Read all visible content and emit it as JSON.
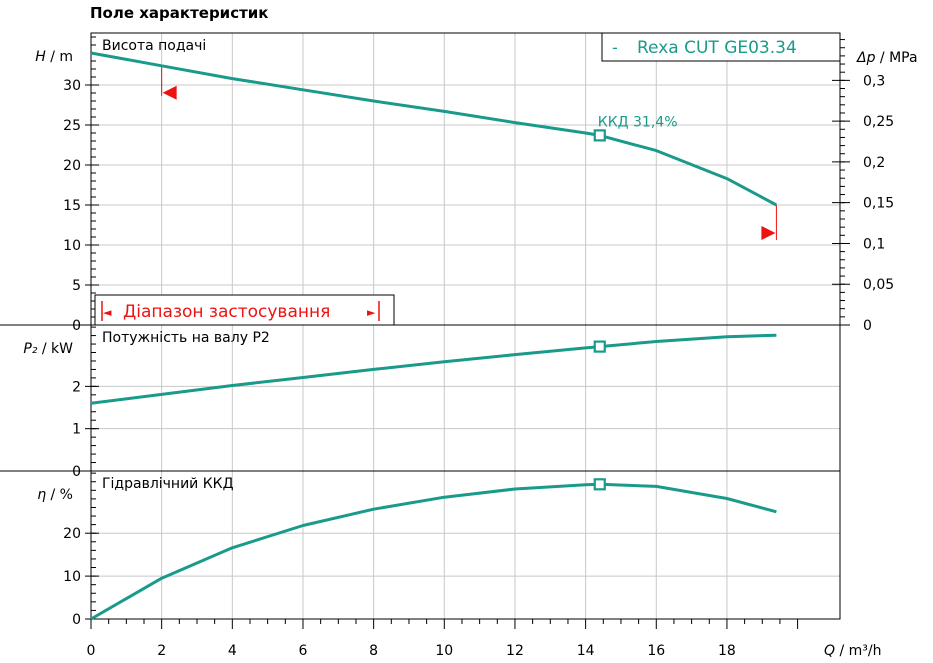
{
  "page_title": "Поле характеристик",
  "chart_data": {
    "type": "line",
    "x_axis": {
      "label_var": "Q",
      "label_unit": "/ m³/h",
      "range": [
        0,
        21.2
      ],
      "ticks": [
        0,
        2,
        4,
        6,
        8,
        10,
        12,
        14,
        16,
        18
      ],
      "tick_labels": [
        "0",
        "2",
        "4",
        "6",
        "8",
        "10",
        "12",
        "14",
        "16",
        "18"
      ]
    },
    "legend": {
      "marker": "-",
      "label": "Rexa CUT GE03.34",
      "placement": "top-right"
    },
    "colors": {
      "curve": "#1a9a8a",
      "range": "#ee1111",
      "grid": "#c8c8c8",
      "axis": "#000000"
    },
    "operating_point_q": 14.4,
    "panels": [
      {
        "name": "head",
        "panel_label": "Висота подачі",
        "y_label_var": "H",
        "y_label_unit": "/ m",
        "y_range": [
          0,
          36.5
        ],
        "y_ticks": [
          0,
          5,
          10,
          15,
          20,
          25,
          30
        ],
        "y_tick_labels": [
          "0",
          "5",
          "10",
          "15",
          "20",
          "25",
          "30"
        ],
        "right_axis": {
          "label_var": "Δp",
          "label_unit": "/ MPa",
          "ticks": [
            0,
            0.05,
            0.1,
            0.15,
            0.2,
            0.25,
            0.3
          ],
          "tick_labels": [
            "0",
            "0,05",
            "0,1",
            "0,15",
            "0,2",
            "0,25",
            "0,3"
          ]
        },
        "series": [
          {
            "x": [
              0,
              2,
              4,
              6,
              8,
              10,
              12,
              14,
              14.4,
              16,
              18,
              19.4
            ],
            "y": [
              34.0,
              32.4,
              30.8,
              29.4,
              28.0,
              26.7,
              25.3,
              24.0,
              23.7,
              21.8,
              18.3,
              15.0
            ]
          }
        ],
        "marker": {
          "x": 14.4,
          "y": 23.7
        },
        "annotation": "ККД  31,4%",
        "range_label": "Діапазон застосування",
        "range_arrow_left": "◄",
        "range_arrow_right": "►",
        "range_limits": {
          "q_min": 2.0,
          "h_at_min": 32.4,
          "q_max": 19.4,
          "h_at_max": 15.0
        }
      },
      {
        "name": "power",
        "panel_label": "Потужність на валу P2",
        "y_label_var": "P₂",
        "y_label_unit": "/ kW",
        "y_range": [
          0,
          3.45
        ],
        "y_ticks": [
          0,
          1,
          2
        ],
        "y_tick_labels": [
          "0",
          "1",
          "2"
        ],
        "series": [
          {
            "x": [
              0,
              2,
              4,
              6,
              8,
              10,
              12,
              14,
              14.4,
              16,
              18,
              19.4
            ],
            "y": [
              1.6,
              1.81,
              2.02,
              2.21,
              2.4,
              2.58,
              2.75,
              2.91,
              2.94,
              3.06,
              3.17,
              3.21
            ]
          }
        ],
        "marker": {
          "x": 14.4,
          "y": 2.94
        }
      },
      {
        "name": "efficiency",
        "panel_label": "Гідравлічний ККД",
        "y_label_var": "η",
        "y_label_unit": "/ %",
        "y_range": [
          0,
          34.5
        ],
        "y_ticks": [
          0,
          10,
          20
        ],
        "y_tick_labels": [
          "0",
          "10",
          "20"
        ],
        "series": [
          {
            "x": [
              0,
              2,
              4,
              6,
              8,
              10,
              12,
              14,
              14.4,
              16,
              18,
              19.4
            ],
            "y": [
              0,
              9.5,
              16.6,
              21.8,
              25.6,
              28.4,
              30.3,
              31.3,
              31.4,
              30.9,
              28.1,
              25.0
            ]
          }
        ],
        "marker": {
          "x": 14.4,
          "y": 31.4
        }
      }
    ]
  }
}
